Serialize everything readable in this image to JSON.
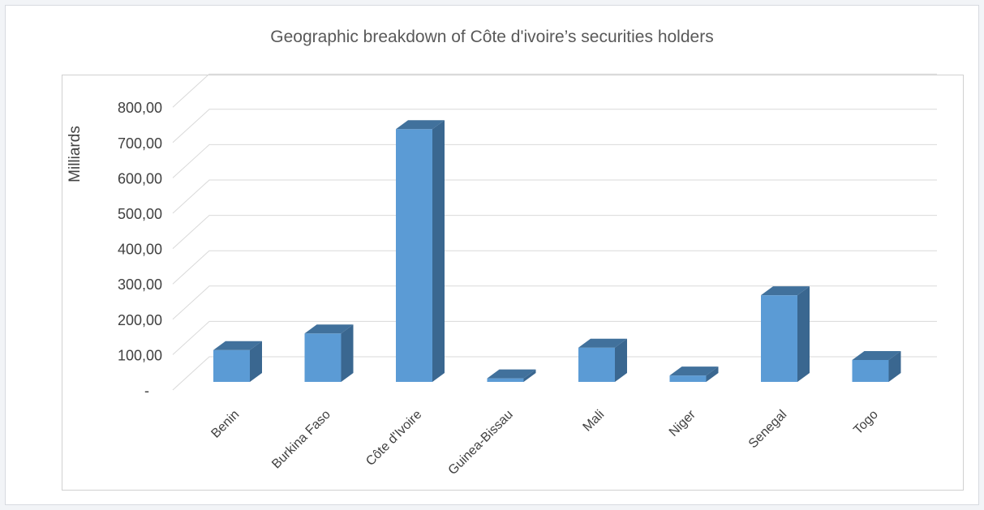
{
  "chart_data": {
    "type": "bar",
    "title": "Geographic breakdown of Côte d'ivoire’s securities holders",
    "ylabel": "Milliards",
    "xlabel": "",
    "categories": [
      "Benin",
      "Burkina Faso",
      "Côte d'Ivoire",
      "Guinea-Bissau",
      "Mali",
      "Niger",
      "Senegal",
      "Togo"
    ],
    "values": [
      90,
      137,
      715,
      10,
      97,
      18,
      245,
      62
    ],
    "ylim": [
      0,
      800
    ],
    "yticks": [
      0,
      100,
      200,
      300,
      400,
      500,
      600,
      700,
      800
    ],
    "ytick_labels": [
      "-",
      "100,00",
      "200,00",
      "300,00",
      "400,00",
      "500,00",
      "600,00",
      "700,00",
      "800,00"
    ],
    "grid": true,
    "style": "3d-column",
    "colors": {
      "front": "#5b9bd5",
      "side": "#3a6790",
      "top": "#41719c",
      "grid": "#d9d9d9"
    }
  }
}
